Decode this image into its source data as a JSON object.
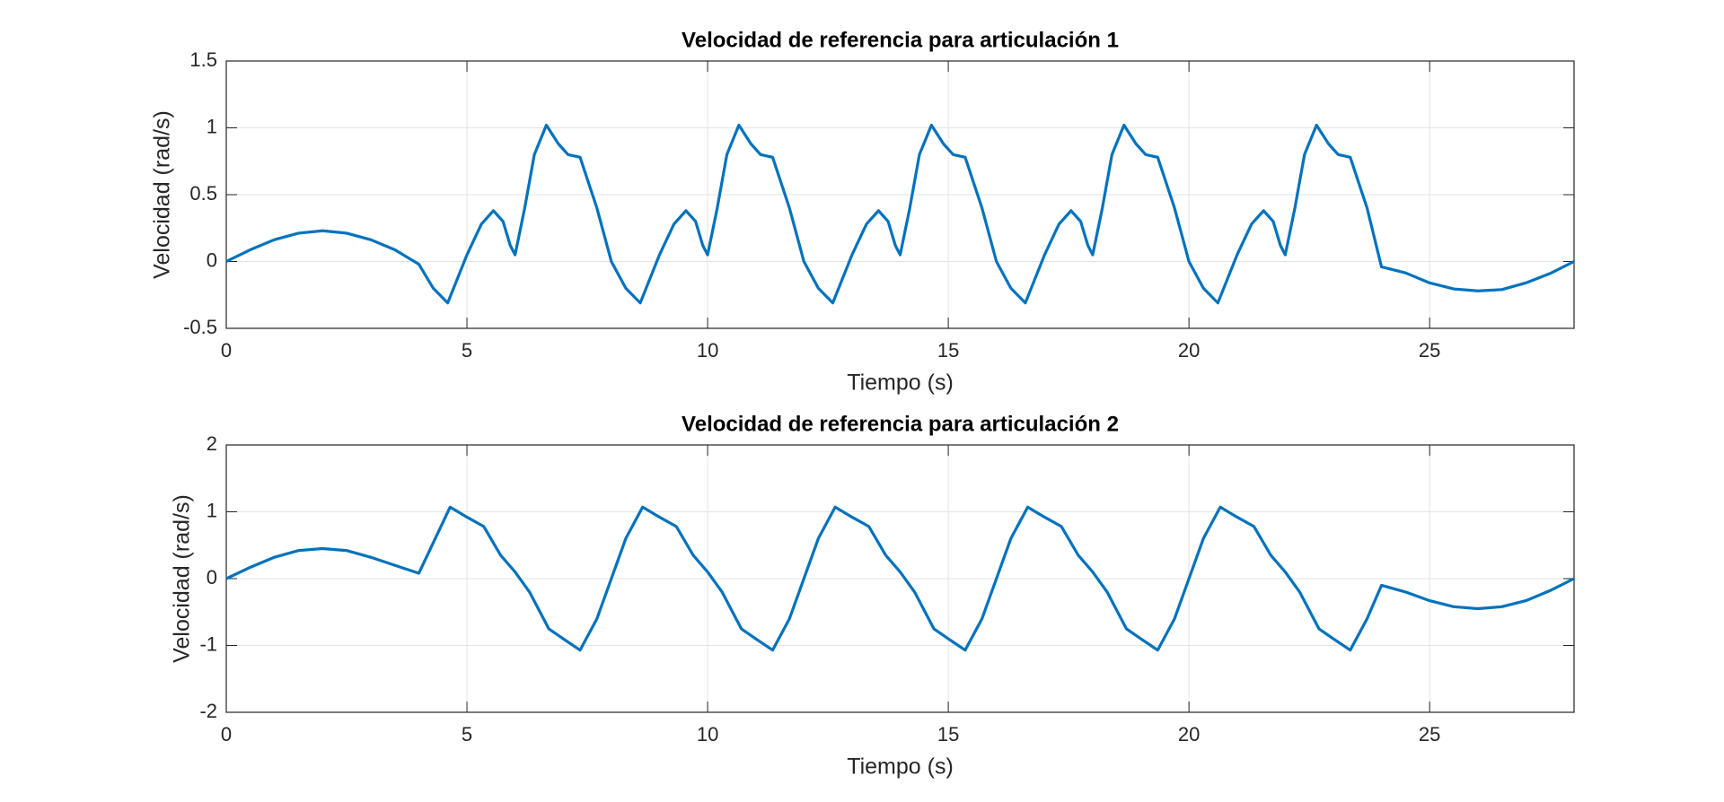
{
  "chart_data": [
    {
      "type": "line",
      "title": "Velocidad de referencia para articulación 1",
      "x_label": "Tiempo (s)",
      "y_label": "Velocidad (rad/s)",
      "x": [
        0,
        0.5,
        1,
        1.5,
        2,
        2.5,
        3,
        3.5,
        4,
        4.3,
        4.6,
        5,
        5.3,
        5.55,
        5.75,
        5.9,
        6,
        6.2,
        6.4,
        6.65,
        6.9,
        7.1,
        7.35,
        7.7,
        8,
        8.3,
        8.6,
        9,
        9.3,
        9.55,
        9.75,
        9.9,
        10,
        10.2,
        10.4,
        10.65,
        10.9,
        11.1,
        11.35,
        11.7,
        12,
        12.3,
        12.6,
        13,
        13.3,
        13.55,
        13.75,
        13.9,
        14,
        14.2,
        14.4,
        14.65,
        14.9,
        15.1,
        15.35,
        15.7,
        16,
        16.3,
        16.6,
        17,
        17.3,
        17.55,
        17.75,
        17.9,
        18,
        18.2,
        18.4,
        18.65,
        18.9,
        19.1,
        19.35,
        19.7,
        20,
        20.3,
        20.6,
        21,
        21.3,
        21.55,
        21.75,
        21.9,
        22,
        22.2,
        22.4,
        22.65,
        22.9,
        23.1,
        23.35,
        23.7,
        24,
        24.5,
        25,
        25.5,
        26,
        26.5,
        27,
        27.5,
        28
      ],
      "series": [
        {
          "name": "Articulación 1",
          "color": "#0072bd",
          "values": [
            0,
            0.088,
            0.163,
            0.212,
            0.23,
            0.212,
            0.163,
            0.088,
            -0.02,
            -0.2,
            -0.31,
            0.05,
            0.28,
            0.38,
            0.3,
            0.12,
            0.05,
            0.4,
            0.8,
            1.02,
            0.88,
            0.8,
            0.78,
            0.4,
            0.0,
            -0.2,
            -0.31,
            0.05,
            0.28,
            0.38,
            0.3,
            0.12,
            0.05,
            0.4,
            0.8,
            1.02,
            0.88,
            0.8,
            0.78,
            0.4,
            0.0,
            -0.2,
            -0.31,
            0.05,
            0.28,
            0.38,
            0.3,
            0.12,
            0.05,
            0.4,
            0.8,
            1.02,
            0.88,
            0.8,
            0.78,
            0.4,
            0.0,
            -0.2,
            -0.31,
            0.05,
            0.28,
            0.38,
            0.3,
            0.12,
            0.05,
            0.4,
            0.8,
            1.02,
            0.88,
            0.8,
            0.78,
            0.4,
            0.0,
            -0.2,
            -0.31,
            0.05,
            0.28,
            0.38,
            0.3,
            0.12,
            0.05,
            0.4,
            0.8,
            1.02,
            0.88,
            0.8,
            0.78,
            0.4,
            -0.04,
            -0.085,
            -0.16,
            -0.205,
            -0.22,
            -0.21,
            -0.16,
            -0.09,
            0
          ]
        }
      ],
      "xlim": [
        0,
        28
      ],
      "xticks": [
        0,
        5,
        10,
        15,
        20,
        25
      ],
      "ylim": [
        -0.5,
        1.5
      ],
      "yticks": [
        -0.5,
        0,
        0.5,
        1,
        1.5
      ],
      "grid": true
    },
    {
      "type": "line",
      "title": "Velocidad de referencia para articulación 2",
      "x_label": "Tiempo (s)",
      "y_label": "Velocidad (rad/s)",
      "x": [
        0,
        0.5,
        1,
        1.5,
        2,
        2.5,
        3,
        3.5,
        4,
        4.65,
        5,
        5.35,
        5.7,
        6,
        6.3,
        6.7,
        7,
        7.35,
        7.7,
        8,
        8.3,
        8.65,
        9,
        9.35,
        9.7,
        10,
        10.3,
        10.7,
        11,
        11.35,
        11.7,
        12,
        12.3,
        12.65,
        13,
        13.35,
        13.7,
        14,
        14.3,
        14.7,
        15,
        15.35,
        15.7,
        16,
        16.3,
        16.65,
        17,
        17.35,
        17.7,
        18,
        18.3,
        18.7,
        19,
        19.35,
        19.7,
        20,
        20.3,
        20.65,
        21,
        21.35,
        21.7,
        22,
        22.3,
        22.7,
        23,
        23.35,
        23.7,
        24,
        24.5,
        25,
        25.5,
        26,
        26.5,
        27,
        27.5,
        28
      ],
      "series": [
        {
          "name": "Articulación 2",
          "color": "#0072bd",
          "values": [
            0,
            0.17,
            0.32,
            0.42,
            0.45,
            0.42,
            0.32,
            0.2,
            0.08,
            1.07,
            0.92,
            0.78,
            0.35,
            0.1,
            -0.2,
            -0.75,
            -0.9,
            -1.07,
            -0.6,
            0.0,
            0.6,
            1.07,
            0.92,
            0.78,
            0.35,
            0.1,
            -0.2,
            -0.75,
            -0.9,
            -1.07,
            -0.6,
            0.0,
            0.6,
            1.07,
            0.92,
            0.78,
            0.35,
            0.1,
            -0.2,
            -0.75,
            -0.9,
            -1.07,
            -0.6,
            0.0,
            0.6,
            1.07,
            0.92,
            0.78,
            0.35,
            0.1,
            -0.2,
            -0.75,
            -0.9,
            -1.07,
            -0.6,
            0.0,
            0.6,
            1.07,
            0.92,
            0.78,
            0.35,
            0.1,
            -0.2,
            -0.75,
            -0.9,
            -1.07,
            -0.6,
            -0.1,
            -0.2,
            -0.33,
            -0.42,
            -0.45,
            -0.42,
            -0.33,
            -0.18,
            0
          ]
        }
      ],
      "xlim": [
        0,
        28
      ],
      "xticks": [
        0,
        5,
        10,
        15,
        20,
        25
      ],
      "ylim": [
        -2,
        2
      ],
      "yticks": [
        -2,
        -1,
        0,
        1,
        2
      ],
      "grid": true
    }
  ]
}
